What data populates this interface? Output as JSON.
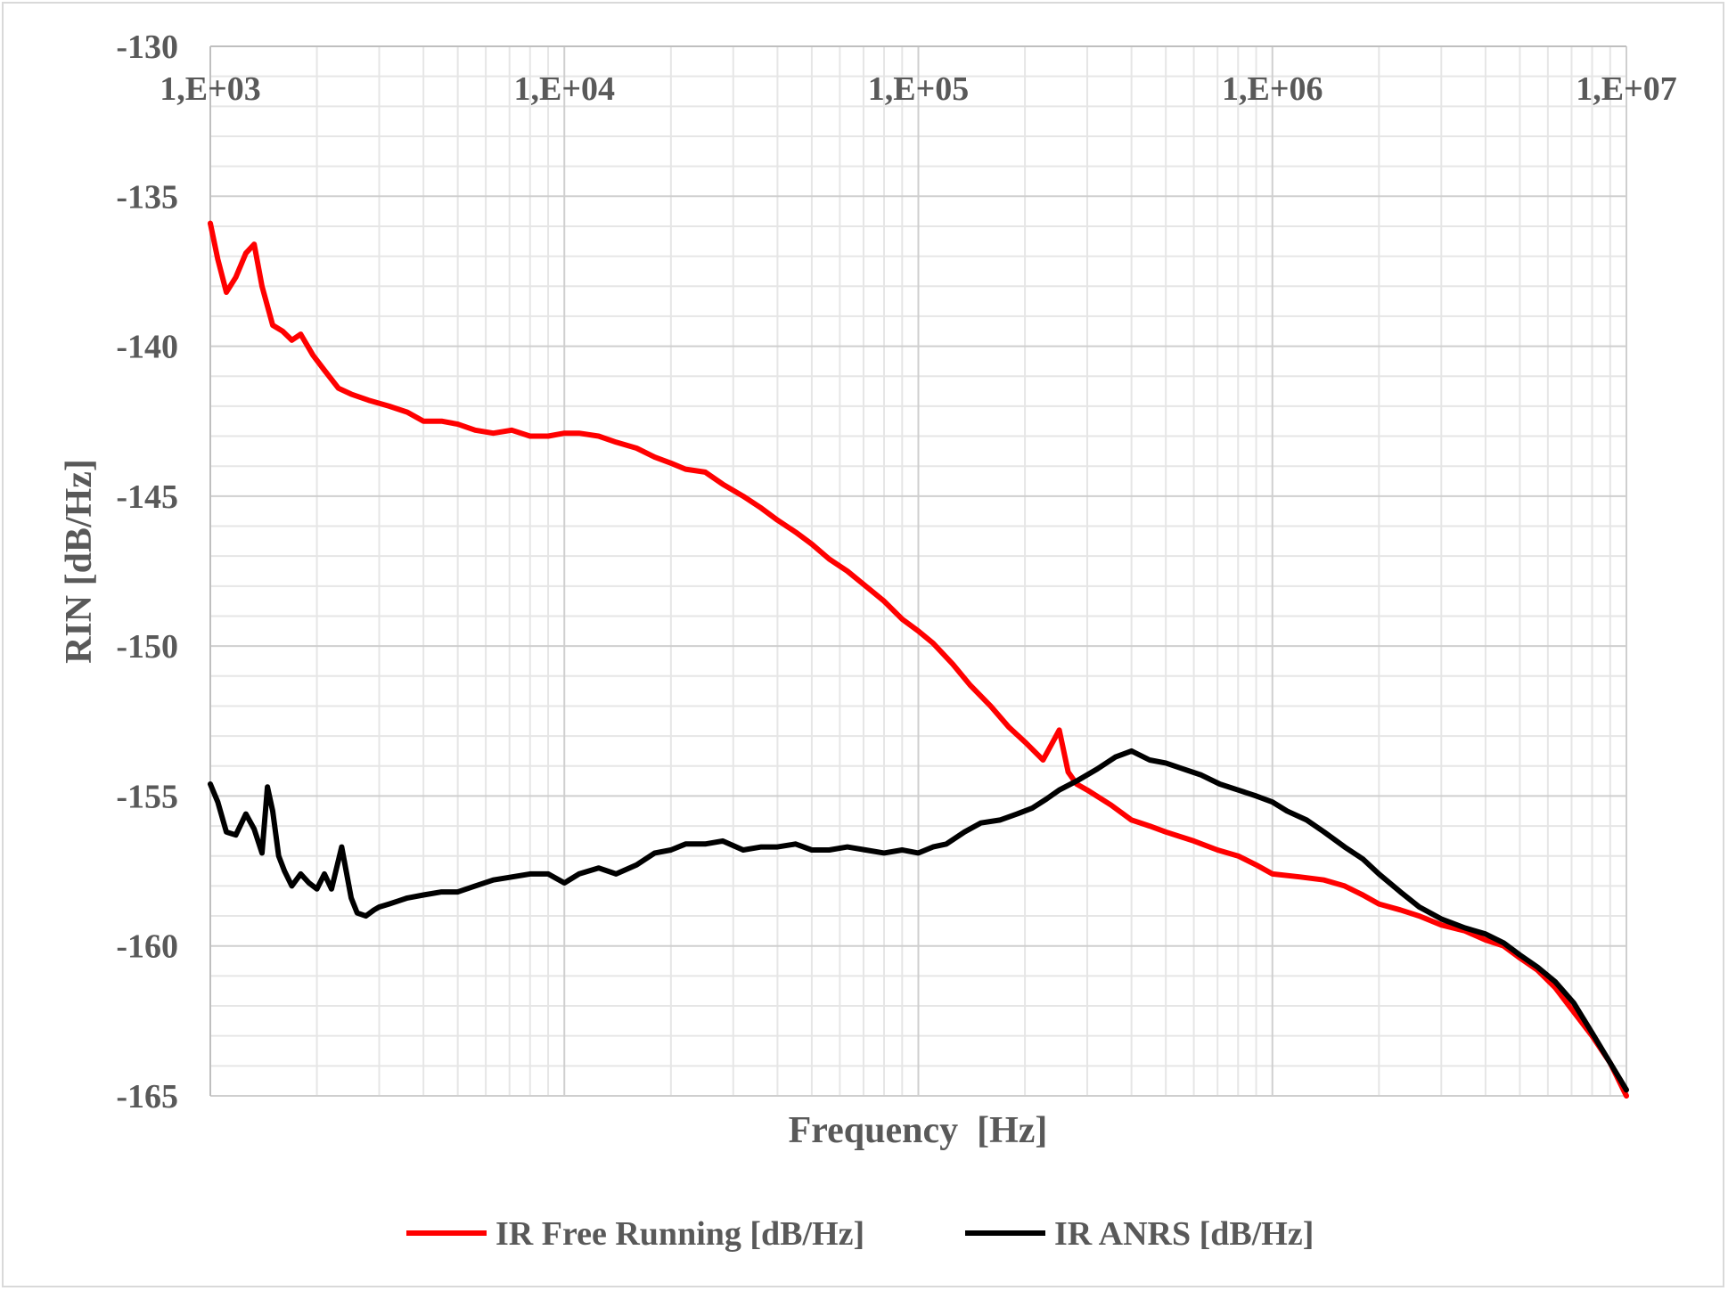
{
  "chart_data": {
    "type": "line",
    "xlabel": "Frequency  [Hz]",
    "ylabel": "RIN [dB/Hz]",
    "xscale": "log",
    "xlim": [
      1000,
      10000000
    ],
    "ylim": [
      -165,
      -130
    ],
    "x_ticks": [
      1000,
      10000,
      100000,
      1000000,
      10000000
    ],
    "x_tick_labels": [
      "1,E+03",
      "1,E+04",
      "1,E+05",
      "1,E+06",
      "1,E+07"
    ],
    "y_ticks": [
      -130,
      -135,
      -140,
      -145,
      -150,
      -155,
      -160,
      -165
    ],
    "y_tick_labels": [
      "-130",
      "-135",
      "-140",
      "-145",
      "-150",
      "-155",
      "-160",
      "-165"
    ],
    "x_axis_position": "top",
    "grid": true,
    "legend_position": "bottom",
    "series": [
      {
        "name": "IR Free Running [dB/Hz]",
        "color": "#ff0000",
        "x": [
          1000,
          1050,
          1110,
          1180,
          1260,
          1330,
          1400,
          1500,
          1600,
          1700,
          1800,
          1950,
          2100,
          2300,
          2500,
          2800,
          3200,
          3600,
          4000,
          4500,
          5000,
          5600,
          6300,
          7100,
          8000,
          9000,
          10000,
          11000,
          12500,
          14000,
          16000,
          18000,
          20000,
          22000,
          25000,
          28000,
          32000,
          36000,
          40000,
          45000,
          50000,
          56000,
          63000,
          71000,
          80000,
          90000,
          100000,
          110000,
          125000,
          140000,
          160000,
          180000,
          200000,
          225000,
          250000,
          265000,
          280000,
          300000,
          350000,
          400000,
          450000,
          500000,
          600000,
          700000,
          800000,
          900000,
          1000000,
          1200000,
          1400000,
          1600000,
          1800000,
          2000000,
          2300000,
          2600000,
          3000000,
          3500000,
          4000000,
          4500000,
          5000000,
          5600000,
          6300000,
          7100000,
          8000000,
          9000000,
          10000000
        ],
        "values": [
          -135.9,
          -137.1,
          -138.2,
          -137.7,
          -136.9,
          -136.6,
          -138.0,
          -139.3,
          -139.5,
          -139.8,
          -139.6,
          -140.3,
          -140.8,
          -141.4,
          -141.6,
          -141.8,
          -142.0,
          -142.2,
          -142.5,
          -142.5,
          -142.6,
          -142.8,
          -142.9,
          -142.8,
          -143.0,
          -143.0,
          -142.9,
          -142.9,
          -143.0,
          -143.2,
          -143.4,
          -143.7,
          -143.9,
          -144.1,
          -144.2,
          -144.6,
          -145.0,
          -145.4,
          -145.8,
          -146.2,
          -146.6,
          -147.1,
          -147.5,
          -148.0,
          -148.5,
          -149.1,
          -149.5,
          -149.9,
          -150.6,
          -151.3,
          -152.0,
          -152.7,
          -153.2,
          -153.8,
          -152.8,
          -154.2,
          -154.6,
          -154.8,
          -155.3,
          -155.8,
          -156.0,
          -156.2,
          -156.5,
          -156.8,
          -157.0,
          -157.3,
          -157.6,
          -157.7,
          -157.8,
          -158.0,
          -158.3,
          -158.6,
          -158.8,
          -159.0,
          -159.3,
          -159.5,
          -159.8,
          -160.0,
          -160.4,
          -160.8,
          -161.4,
          -162.2,
          -163.0,
          -163.9,
          -165.0
        ]
      },
      {
        "name": "IR ANRS [dB/Hz]",
        "color": "#000000",
        "x": [
          1000,
          1050,
          1110,
          1180,
          1260,
          1330,
          1400,
          1450,
          1500,
          1560,
          1620,
          1700,
          1800,
          1900,
          2000,
          2100,
          2200,
          2350,
          2500,
          2600,
          2750,
          2900,
          3000,
          3200,
          3400,
          3600,
          4000,
          4500,
          5000,
          5600,
          6300,
          7100,
          8000,
          9000,
          10000,
          11000,
          12500,
          14000,
          16000,
          18000,
          20000,
          22000,
          25000,
          28000,
          32000,
          36000,
          40000,
          45000,
          50000,
          56000,
          63000,
          71000,
          80000,
          90000,
          100000,
          110000,
          120000,
          135000,
          150000,
          170000,
          190000,
          210000,
          230000,
          250000,
          280000,
          320000,
          360000,
          400000,
          450000,
          500000,
          560000,
          630000,
          710000,
          800000,
          900000,
          1000000,
          1100000,
          1250000,
          1400000,
          1600000,
          1800000,
          2000000,
          2300000,
          2600000,
          3000000,
          3500000,
          4000000,
          4500000,
          5000000,
          5600000,
          6300000,
          7100000,
          8000000,
          9000000,
          10000000
        ],
        "values": [
          -154.6,
          -155.2,
          -156.2,
          -156.3,
          -155.6,
          -156.1,
          -156.9,
          -154.7,
          -155.5,
          -157.0,
          -157.5,
          -158.0,
          -157.6,
          -157.9,
          -158.1,
          -157.6,
          -158.1,
          -156.7,
          -158.4,
          -158.9,
          -159.0,
          -158.8,
          -158.7,
          -158.6,
          -158.5,
          -158.4,
          -158.3,
          -158.2,
          -158.2,
          -158.0,
          -157.8,
          -157.7,
          -157.6,
          -157.6,
          -157.9,
          -157.6,
          -157.4,
          -157.6,
          -157.3,
          -156.9,
          -156.8,
          -156.6,
          -156.6,
          -156.5,
          -156.8,
          -156.7,
          -156.7,
          -156.6,
          -156.8,
          -156.8,
          -156.7,
          -156.8,
          -156.9,
          -156.8,
          -156.9,
          -156.7,
          -156.6,
          -156.2,
          -155.9,
          -155.8,
          -155.6,
          -155.4,
          -155.1,
          -154.8,
          -154.5,
          -154.1,
          -153.7,
          -153.5,
          -153.8,
          -153.9,
          -154.1,
          -154.3,
          -154.6,
          -154.8,
          -155.0,
          -155.2,
          -155.5,
          -155.8,
          -156.2,
          -156.7,
          -157.1,
          -157.6,
          -158.2,
          -158.7,
          -159.1,
          -159.4,
          -159.6,
          -159.9,
          -160.3,
          -160.7,
          -161.2,
          -161.9,
          -162.9,
          -163.9,
          -164.8
        ]
      }
    ]
  }
}
